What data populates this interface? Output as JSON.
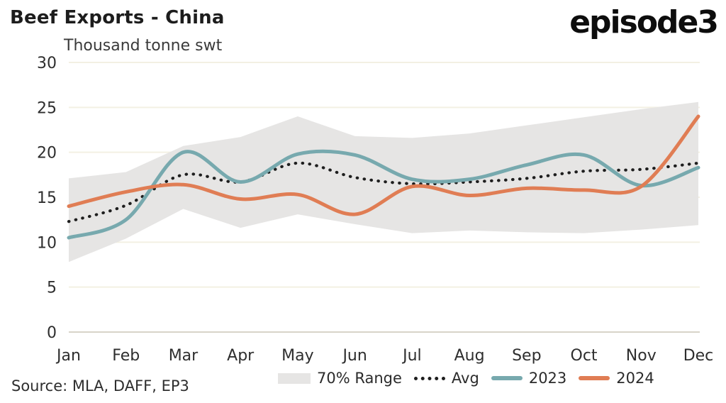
{
  "header": {
    "title": "Beef Exports - China",
    "logo": "episode3"
  },
  "chart_data": {
    "type": "line",
    "title": "Beef Exports - China",
    "unit_label": "Thousand tonne swt",
    "categories": [
      "Jan",
      "Feb",
      "Mar",
      "Apr",
      "May",
      "Jun",
      "Jul",
      "Aug",
      "Sep",
      "Oct",
      "Nov",
      "Dec"
    ],
    "ylim": [
      0,
      30
    ],
    "yticks": [
      0,
      5,
      10,
      15,
      20,
      25,
      30
    ],
    "grid": "horizontal",
    "legend_position": "bottom",
    "series": [
      {
        "name": "70% Range",
        "type": "band",
        "upper": [
          17.1,
          17.8,
          20.7,
          21.7,
          24.0,
          21.8,
          21.6,
          22.1,
          23.0,
          23.9,
          24.8,
          25.6
        ],
        "lower": [
          7.8,
          10.4,
          13.7,
          11.6,
          13.1,
          12.0,
          11.0,
          11.3,
          11.1,
          11.0,
          11.4,
          11.9
        ],
        "color": "#e6e5e4"
      },
      {
        "name": "Avg",
        "type": "dotted",
        "values": [
          12.3,
          14.1,
          17.5,
          16.7,
          18.8,
          17.2,
          16.5,
          16.7,
          17.1,
          17.9,
          18.1,
          18.8
        ],
        "color": "#1e1e1e"
      },
      {
        "name": "2023",
        "type": "line",
        "values": [
          10.5,
          12.5,
          20.0,
          16.7,
          19.8,
          19.7,
          17.0,
          17.0,
          18.6,
          19.7,
          16.3,
          18.3
        ],
        "color": "#77a9ae"
      },
      {
        "name": "2024",
        "type": "line",
        "values": [
          14.0,
          15.6,
          16.4,
          14.8,
          15.3,
          13.1,
          16.2,
          15.2,
          16.0,
          15.8,
          16.2,
          24.0
        ],
        "color": "#e07d54"
      }
    ],
    "colors": {
      "gridline": "#f3f0e3",
      "zero_axis": "#d8d4c8",
      "axis_text": "#2e2e2e"
    }
  },
  "legend": {
    "items": [
      {
        "label": "70% Range",
        "swatch": "band",
        "color": "#e6e5e4"
      },
      {
        "label": "Avg",
        "swatch": "dots",
        "color": "#1e1e1e"
      },
      {
        "label": "2023",
        "swatch": "line",
        "color": "#77a9ae"
      },
      {
        "label": "2024",
        "swatch": "line",
        "color": "#e07d54"
      }
    ]
  },
  "footer": {
    "source": "Source: MLA, DAFF, EP3"
  }
}
